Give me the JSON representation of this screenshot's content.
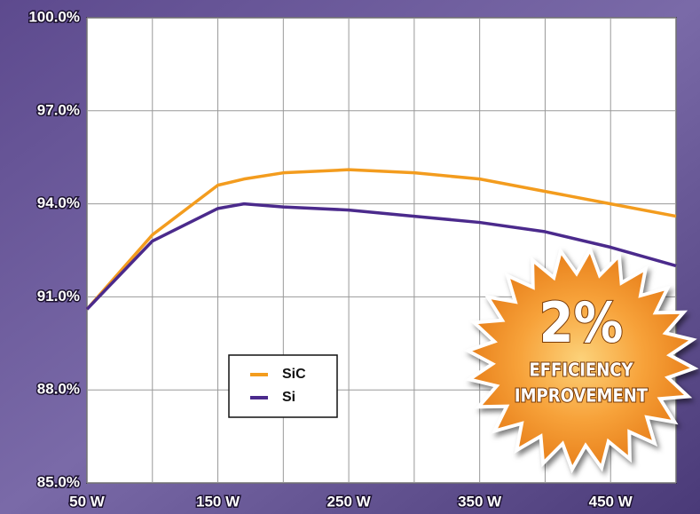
{
  "chart_data": {
    "type": "line",
    "x": [
      50,
      100,
      150,
      170,
      200,
      250,
      300,
      350,
      400,
      450,
      500
    ],
    "series": [
      {
        "name": "SiC",
        "color": "#f39c1e",
        "values": [
          90.6,
          93.0,
          94.6,
          94.8,
          95.0,
          95.1,
          95.0,
          94.8,
          94.4,
          94.0,
          93.6
        ]
      },
      {
        "name": "Si",
        "color": "#4b2a8c",
        "values": [
          90.6,
          92.8,
          93.85,
          94.0,
          93.9,
          93.8,
          93.6,
          93.4,
          93.1,
          92.6,
          92.0
        ]
      }
    ],
    "xlim": [
      50,
      500
    ],
    "xticks": [
      {
        "value": 50,
        "label": "50 W"
      },
      {
        "value": 150,
        "label": "150 W"
      },
      {
        "value": 250,
        "label": "250 W"
      },
      {
        "value": 350,
        "label": "350 W"
      },
      {
        "value": 450,
        "label": "450 W"
      }
    ],
    "x_grid_lines": [
      100,
      200,
      300,
      400,
      500
    ],
    "ylim": [
      85,
      100
    ],
    "yticks": [
      {
        "value": 85,
        "label": "85.0%"
      },
      {
        "value": 88,
        "label": "88.0%"
      },
      {
        "value": 91,
        "label": "91.0%"
      },
      {
        "value": 94,
        "label": "94.0%"
      },
      {
        "value": 97,
        "label": "97.0%"
      },
      {
        "value": 100,
        "label": "100.0%"
      }
    ],
    "grid": true,
    "annotations": [
      "2%",
      "EFFICIENCY",
      "IMPROVEMENT"
    ]
  }
}
